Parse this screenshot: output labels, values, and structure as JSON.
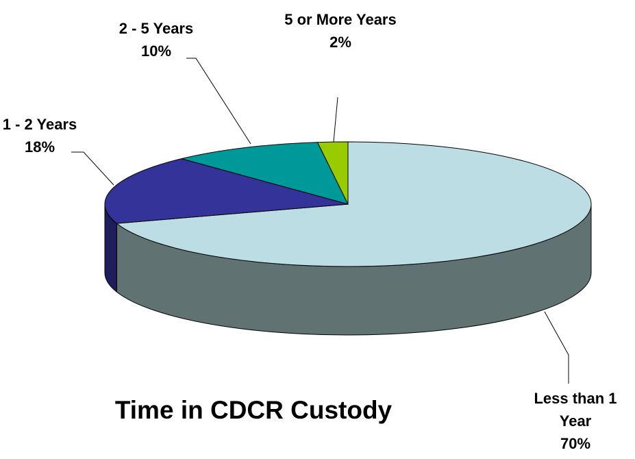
{
  "chart_data": {
    "type": "pie",
    "title": "Time in CDCR Custody",
    "categories": [
      "Less than 1 Year",
      "1 - 2 Years",
      "2 - 5 Years",
      "5 or More Years"
    ],
    "values": [
      70,
      18,
      10,
      2
    ],
    "value_labels": [
      "70%",
      "18%",
      "10%",
      "2%"
    ],
    "colors": [
      "#bcdde3",
      "#333399",
      "#009999",
      "#99cc00"
    ],
    "side_colors": [
      "#607272",
      "#1e1e5c",
      "#006060",
      "#5c7a00"
    ]
  }
}
